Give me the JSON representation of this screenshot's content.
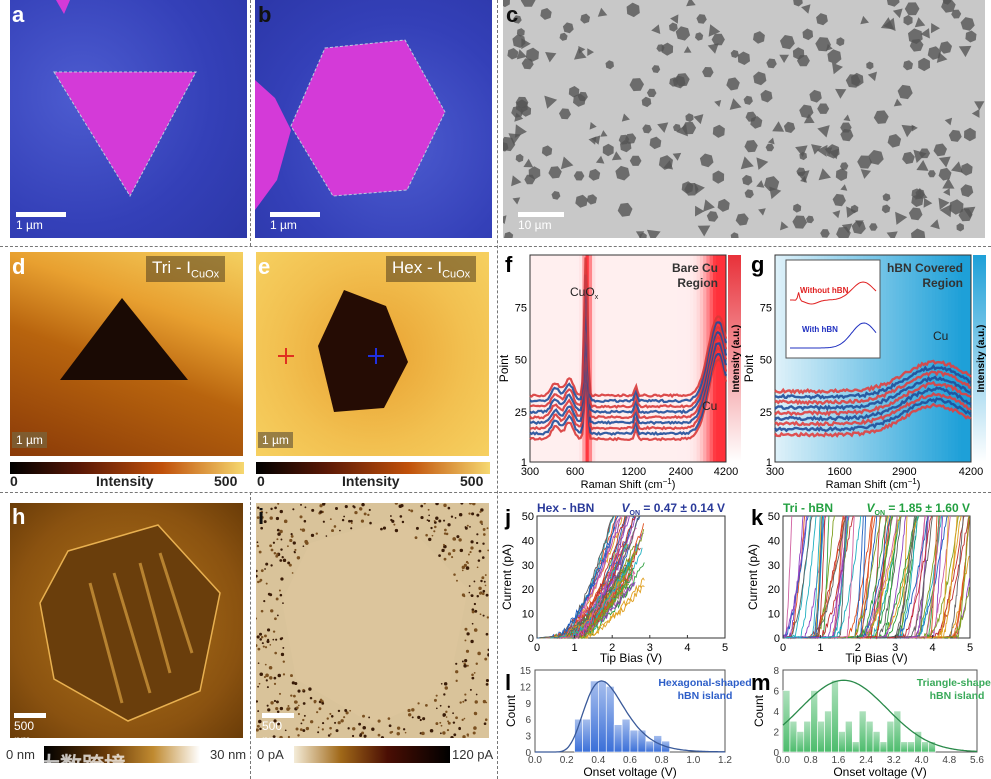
{
  "panels": {
    "a": {
      "label": "a",
      "scale_bar": "1 µm"
    },
    "b": {
      "label": "b",
      "scale_bar": "1 µm"
    },
    "c": {
      "label": "c",
      "scale_bar": "10 µm"
    },
    "d": {
      "label": "d",
      "title": "Tri - I",
      "title_sub": "CuOx",
      "scale_bar": "1 µm",
      "colorbar": {
        "min": "0",
        "label": "Intensity",
        "max": "500"
      }
    },
    "e": {
      "label": "e",
      "title": "Hex - I",
      "title_sub": "CuOx",
      "scale_bar": "1 µm",
      "colorbar": {
        "min": "0",
        "label": "Intensity",
        "max": "500"
      },
      "markers": {
        "red": "#e03020",
        "blue": "#2030e0"
      }
    },
    "f": {
      "label": "f"
    },
    "g": {
      "label": "g"
    },
    "h": {
      "label": "h",
      "scale_bar": "500 nm",
      "colorbar": {
        "min": "0 nm",
        "max": "30 nm"
      }
    },
    "i": {
      "label": "i",
      "scale_bar": "500 nm",
      "colorbar": {
        "min": "0 pA",
        "max": "120 pA"
      }
    },
    "j": {
      "label": "j"
    },
    "k": {
      "label": "k"
    },
    "l": {
      "label": "l"
    },
    "m": {
      "label": "m"
    }
  },
  "watermark": "大数跨境",
  "chart_data": [
    {
      "id": "f",
      "type": "heatmap",
      "xlabel": "Raman Shift (cm",
      "xlabel_sup": "−1",
      "xlabel_end": ")",
      "ylabel": "Point",
      "colorbar_label": "Intensity (a.u.)",
      "x_ticks": [
        "300",
        "600",
        "1200",
        "2400",
        "4200"
      ],
      "y_ticks": [
        "1",
        "25",
        "50",
        "75"
      ],
      "annotations": [
        "Bare Cu",
        "Region",
        "CuO",
        "x",
        "Cu"
      ],
      "color": "#e8313a"
    },
    {
      "id": "g",
      "type": "heatmap",
      "xlabel": "Raman Shift (cm",
      "xlabel_sup": "−1",
      "xlabel_end": ")",
      "ylabel": "Point",
      "colorbar_label": "Intensity (a.u.)",
      "x_ticks": [
        "300",
        "1600",
        "2900",
        "4200"
      ],
      "y_ticks": [
        "1",
        "25",
        "50",
        "75"
      ],
      "annotations": [
        "hBN Covered",
        "Region",
        "Cu"
      ],
      "color": "#1ea0d8",
      "inset": {
        "series": [
          {
            "name": "Without hBN",
            "color": "#e02020"
          },
          {
            "name": "With hBN",
            "color": "#2030c0"
          }
        ]
      }
    },
    {
      "id": "j",
      "type": "line",
      "title": "Hex - hBN",
      "annotation": "V",
      "annotation_sub": "ON",
      "annotation_value": "= 0.47 ± 0.14 V",
      "title_color": "#2a3a9a",
      "xlabel": "Tip Bias (V)",
      "ylabel": "Current (pA)",
      "xlim": [
        0,
        5
      ],
      "ylim": [
        0,
        50
      ],
      "x_ticks": [
        0,
        1,
        2,
        3,
        4,
        5
      ],
      "y_ticks": [
        0,
        10,
        20,
        30,
        40,
        50
      ],
      "onset_mean": 0.47,
      "onset_sd": 0.14
    },
    {
      "id": "k",
      "type": "line",
      "title": "Tri - hBN",
      "annotation": "V",
      "annotation_sub": "ON",
      "annotation_value": "= 1.85 ± 1.60 V",
      "title_color": "#22a040",
      "xlabel": "Tip Bias (V)",
      "ylabel": "Current (pA)",
      "xlim": [
        0,
        5
      ],
      "ylim": [
        0,
        50
      ],
      "x_ticks": [
        0,
        1,
        2,
        3,
        4,
        5
      ],
      "y_ticks": [
        0,
        10,
        20,
        30,
        40,
        50
      ],
      "onset_mean": 1.85,
      "onset_sd": 1.6
    },
    {
      "id": "l",
      "type": "bar",
      "legend": [
        "Hexagonal-shaped",
        "hBN island"
      ],
      "legend_color": "#2d5ec8",
      "xlabel": "Onset voltage (V)",
      "ylabel": "Count",
      "xlim": [
        0,
        1.2
      ],
      "ylim": [
        0,
        15
      ],
      "x_ticks": [
        "0.0",
        "0.2",
        "0.4",
        "0.6",
        "0.8",
        "1.0",
        "1.2"
      ],
      "y_ticks": [
        "0",
        "3",
        "6",
        "9",
        "12",
        "15"
      ],
      "bin_start": 0.25,
      "bin_width": 0.05,
      "values": [
        6,
        6,
        13,
        13,
        12,
        5,
        6,
        4,
        4,
        2,
        3,
        2
      ],
      "bar_color": "#3a6fd8",
      "fit": {
        "peak_x": 0.42,
        "peak_y": 13
      }
    },
    {
      "id": "m",
      "type": "bar",
      "legend": [
        "Triangle-shaped",
        "hBN island"
      ],
      "legend_color": "#3aaa5a",
      "xlabel": "Onset voltage (V)",
      "ylabel": "Count",
      "xlim": [
        0,
        5.6
      ],
      "ylim": [
        0,
        8
      ],
      "x_ticks": [
        "0.0",
        "0.8",
        "1.6",
        "2.4",
        "3.2",
        "4.0",
        "4.8",
        "5.6"
      ],
      "y_ticks": [
        "0",
        "2",
        "4",
        "6",
        "8"
      ],
      "bin_start": 0.0,
      "bin_width": 0.2,
      "values": [
        6,
        3,
        2,
        3,
        6,
        3,
        4,
        7,
        2,
        3,
        1,
        4,
        3,
        2,
        1,
        3,
        4,
        1,
        1,
        2,
        1,
        1
      ],
      "bar_color": "#4cbc6c",
      "fit": {
        "peak_x": 1.75,
        "peak_y": 7
      }
    }
  ]
}
